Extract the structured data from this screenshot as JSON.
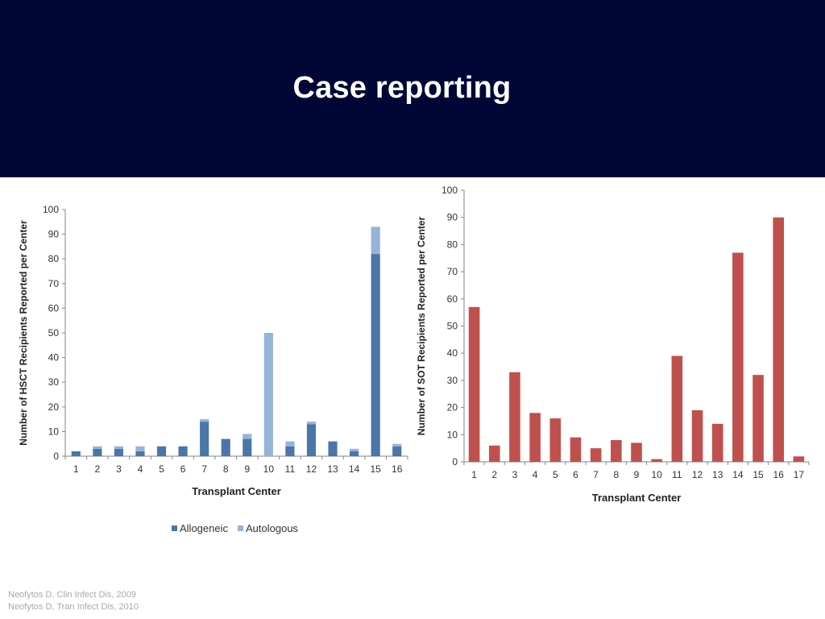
{
  "slide": {
    "title": "Case reporting",
    "references": [
      "Neofytos D, Clin Infect Dis, 2009",
      "Neofytos D, Tran Infect Dis, 2010"
    ]
  },
  "chart_data": [
    {
      "type": "bar",
      "stacked": true,
      "title": "",
      "xlabel": "Transplant Center",
      "ylabel": "Number of HSCT Recipients Reported per Center",
      "ylim": [
        0,
        100
      ],
      "yticks": [
        0,
        10,
        20,
        30,
        40,
        50,
        60,
        70,
        80,
        90,
        100
      ],
      "categories": [
        "1",
        "2",
        "3",
        "4",
        "5",
        "6",
        "7",
        "8",
        "9",
        "10",
        "11",
        "12",
        "13",
        "14",
        "15",
        "16"
      ],
      "series": [
        {
          "name": "Allogeneic",
          "color": "#4a76a8",
          "values": [
            2,
            3,
            3,
            2,
            4,
            4,
            14,
            7,
            7,
            0,
            4,
            13,
            6,
            2,
            82,
            4
          ]
        },
        {
          "name": "Autologous",
          "color": "#96b3d8",
          "values": [
            0,
            1,
            1,
            2,
            0,
            0,
            1,
            0,
            2,
            50,
            2,
            1,
            0,
            1,
            11,
            1
          ]
        }
      ],
      "legend": "bottom",
      "grid": false
    },
    {
      "type": "bar",
      "title": "",
      "xlabel": "Transplant Center",
      "ylabel": "Number of SOT Recipients Reported per Center",
      "ylim": [
        0,
        100
      ],
      "yticks": [
        0,
        10,
        20,
        30,
        40,
        50,
        60,
        70,
        80,
        90,
        100
      ],
      "categories": [
        "1",
        "2",
        "3",
        "4",
        "5",
        "6",
        "7",
        "8",
        "9",
        "10",
        "11",
        "12",
        "13",
        "14",
        "15",
        "16",
        "17"
      ],
      "series": [
        {
          "color": "#c0504d",
          "values": [
            57,
            6,
            33,
            18,
            16,
            9,
            5,
            8,
            7,
            1,
            39,
            19,
            14,
            77,
            32,
            90,
            2
          ]
        }
      ],
      "legend": "none",
      "grid": false
    }
  ]
}
